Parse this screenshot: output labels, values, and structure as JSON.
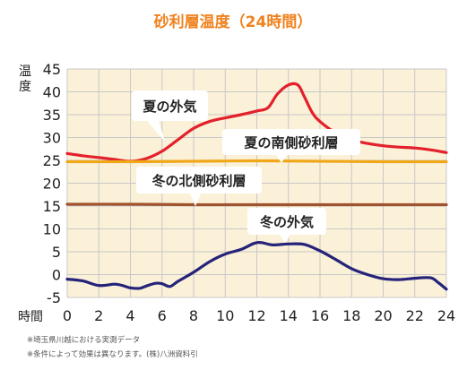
{
  "chart_data": {
    "type": "line",
    "title": "砂利層温度（24時間）",
    "ylabel": "温度",
    "xlabel": "時間",
    "xlim": [
      0,
      24
    ],
    "ylim": [
      -5,
      45
    ],
    "x_ticks": [
      0,
      2,
      4,
      6,
      8,
      10,
      12,
      14,
      16,
      18,
      20,
      22,
      24
    ],
    "y_ticks": [
      -5,
      0,
      5,
      10,
      15,
      20,
      25,
      30,
      35,
      40,
      45
    ],
    "grid": true,
    "series": [
      {
        "name": "夏の外気",
        "color": "#e3202b",
        "points": [
          [
            0,
            26.5
          ],
          [
            1,
            26.0
          ],
          [
            2,
            25.6
          ],
          [
            3,
            25.2
          ],
          [
            4,
            24.8
          ],
          [
            5,
            25.4
          ],
          [
            6,
            27.0
          ],
          [
            7,
            29.5
          ],
          [
            8,
            32.0
          ],
          [
            9,
            33.5
          ],
          [
            10,
            34.3
          ],
          [
            11,
            35.0
          ],
          [
            12,
            35.8
          ],
          [
            12.7,
            36.5
          ],
          [
            13.3,
            39.5
          ],
          [
            14,
            41.5
          ],
          [
            14.6,
            41.5
          ],
          [
            15,
            39.0
          ],
          [
            15.5,
            35.5
          ],
          [
            16,
            33.5
          ],
          [
            17,
            31.0
          ],
          [
            18,
            29.5
          ],
          [
            19,
            28.7
          ],
          [
            20,
            28.2
          ],
          [
            21,
            27.9
          ],
          [
            22,
            27.7
          ],
          [
            23,
            27.3
          ],
          [
            24,
            26.7
          ]
        ]
      },
      {
        "name": "夏の南側砂利層",
        "color": "#f0a81a",
        "points": [
          [
            0,
            24.7
          ],
          [
            4,
            24.7
          ],
          [
            8,
            24.8
          ],
          [
            12,
            24.9
          ],
          [
            16,
            24.8
          ],
          [
            20,
            24.7
          ],
          [
            24,
            24.7
          ]
        ]
      },
      {
        "name": "冬の北側砂利層",
        "color": "#a0522d",
        "points": [
          [
            0,
            15.4
          ],
          [
            4,
            15.4
          ],
          [
            8,
            15.3
          ],
          [
            12,
            15.3
          ],
          [
            16,
            15.3
          ],
          [
            20,
            15.3
          ],
          [
            24,
            15.3
          ]
        ]
      },
      {
        "name": "冬の外気",
        "color": "#25237a",
        "points": [
          [
            0,
            -1.0
          ],
          [
            1,
            -1.4
          ],
          [
            2,
            -2.4
          ],
          [
            3,
            -2.1
          ],
          [
            3.5,
            -2.4
          ],
          [
            4,
            -2.9
          ],
          [
            4.6,
            -3.0
          ],
          [
            5,
            -2.5
          ],
          [
            5.6,
            -1.9
          ],
          [
            6,
            -2.0
          ],
          [
            6.5,
            -2.6
          ],
          [
            7,
            -1.5
          ],
          [
            8,
            0.5
          ],
          [
            9,
            2.8
          ],
          [
            10,
            4.5
          ],
          [
            11,
            5.5
          ],
          [
            11.8,
            6.8
          ],
          [
            12.3,
            7.0
          ],
          [
            13,
            6.5
          ],
          [
            14,
            6.7
          ],
          [
            15,
            6.6
          ],
          [
            16,
            5.2
          ],
          [
            17,
            3.3
          ],
          [
            18,
            1.3
          ],
          [
            19,
            0.0
          ],
          [
            20,
            -0.9
          ],
          [
            21,
            -1.1
          ],
          [
            22,
            -0.8
          ],
          [
            23,
            -0.7
          ],
          [
            23.5,
            -1.8
          ],
          [
            24,
            -3.2
          ]
        ]
      }
    ],
    "annotations": [
      {
        "text": "夏の外気",
        "series": "夏の外気"
      },
      {
        "text": "夏の南側砂利層",
        "series": "夏の南側砂利層"
      },
      {
        "text": "冬の北側砂利層",
        "series": "冬の北側砂利層"
      },
      {
        "text": "冬の外気",
        "series": "冬の外気"
      }
    ]
  },
  "notes": [
    "※埼玉県川越における実測データ",
    "※条件によって効果は異なります。(株)八洲資料引"
  ],
  "colors": {
    "title": "#f0821e",
    "plot_background": "#fbf1d8",
    "grid": "#c8c8c8",
    "axis_text": "#222222"
  }
}
